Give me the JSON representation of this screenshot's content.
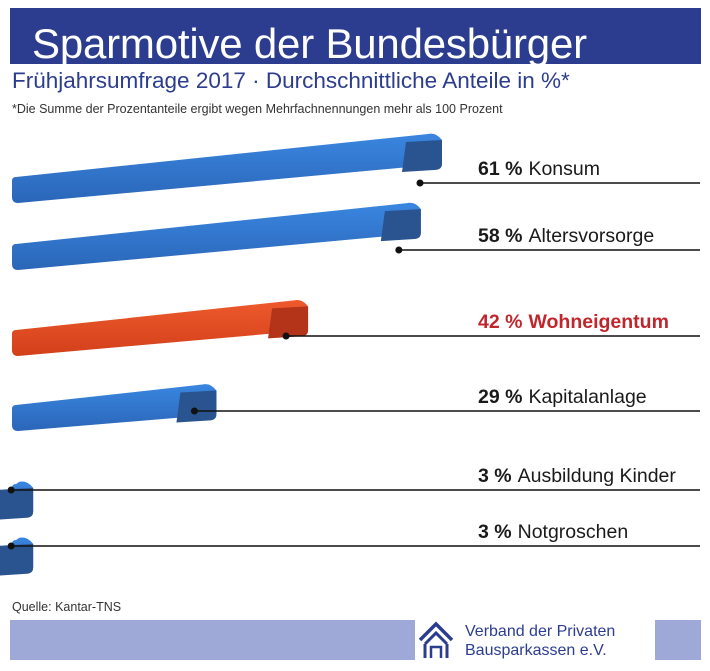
{
  "header": {
    "title": "Sparmotive der Bundesbürger",
    "subtitle": "Frühjahrsumfrage 2017 · Durchschnittliche Anteile in %*",
    "footnote": "*Die Summe der Prozentanteile ergibt wegen Mehrfachnennungen mehr als 100 Prozent"
  },
  "chart_data": {
    "type": "bar",
    "orientation": "horizontal",
    "title": "Sparmotive der Bundesbürger",
    "unit": "%",
    "categories": [
      "Konsum",
      "Altersvorsorge",
      "Wohneigentum",
      "Kapitalanlage",
      "Ausbildung Kinder",
      "Notgroschen"
    ],
    "values": [
      61,
      58,
      42,
      29,
      3,
      3
    ],
    "value_labels": [
      "61 %",
      "58 %",
      "42 %",
      "29 %",
      "3 %",
      "3 %"
    ],
    "highlight": "Wohneigentum",
    "colors": {
      "default": "#2b6fc4",
      "highlight": "#d9431c",
      "highlight_text": "#c0272d",
      "text": "#1a1a1a"
    }
  },
  "footer": {
    "source": "Quelle: Kantar-TNS",
    "org_line1": "Verband der Privaten",
    "org_line2": "Bausparkassen e.V."
  },
  "colors": {
    "brand": "#2c3d8f",
    "band": "#9ea9d8"
  }
}
